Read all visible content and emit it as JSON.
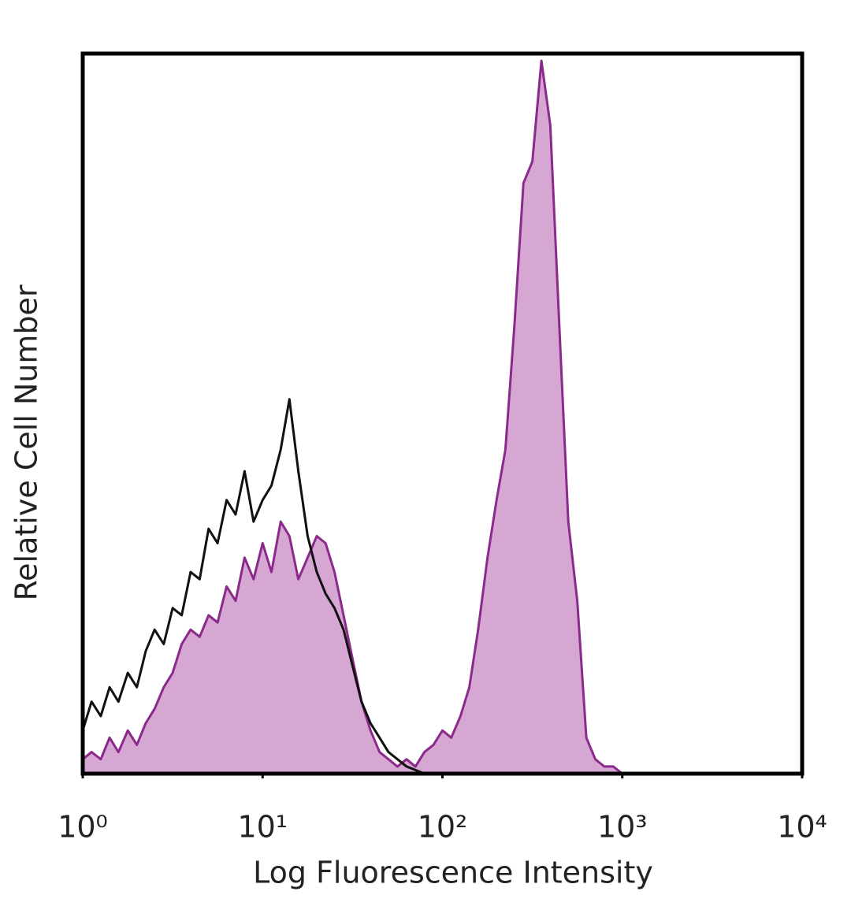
{
  "chart_data": {
    "type": "histogram-overlay",
    "x_label": "Log Fluorescence Intensity",
    "y_label": "Relative Cell Number",
    "xscale": "log",
    "xlim": [
      1,
      10000
    ],
    "ylim": [
      0,
      100
    ],
    "xticks": [
      {
        "value": 1,
        "label": "10⁰"
      },
      {
        "value": 10,
        "label": "10¹"
      },
      {
        "value": 100,
        "label": "10²"
      },
      {
        "value": 1000,
        "label": "10³"
      },
      {
        "value": 10000,
        "label": "10⁴"
      }
    ],
    "x": [
      1,
      1.12,
      1.26,
      1.41,
      1.58,
      1.78,
      2,
      2.24,
      2.51,
      2.82,
      3.16,
      3.55,
      3.98,
      4.47,
      5.01,
      5.62,
      6.31,
      7.08,
      7.94,
      8.91,
      10,
      11.2,
      12.6,
      14.1,
      15.8,
      17.8,
      20,
      22.4,
      25.1,
      28.2,
      31.6,
      35.5,
      39.8,
      44.7,
      50.1,
      56.2,
      63.1,
      70.8,
      79.4,
      89.1,
      100,
      112,
      126,
      141,
      158,
      178,
      200,
      224,
      251,
      282,
      316,
      355,
      398,
      447,
      501,
      562,
      631,
      708,
      794,
      891,
      1000
    ],
    "series": [
      {
        "color": "#8b2a8b",
        "fill": "#d6a7d3",
        "filled": true,
        "values": [
          2,
          3,
          2,
          5,
          3,
          6,
          4,
          7,
          9,
          12,
          14,
          18,
          20,
          19,
          22,
          21,
          26,
          24,
          30,
          27,
          32,
          28,
          35,
          33,
          27,
          30,
          33,
          32,
          28,
          22,
          16,
          10,
          6,
          3,
          2,
          1,
          2,
          1,
          3,
          4,
          6,
          5,
          8,
          12,
          20,
          30,
          38,
          45,
          62,
          82,
          85,
          99,
          90,
          62,
          35,
          24,
          5,
          2,
          1,
          1,
          0
        ]
      },
      {
        "color": "#111111",
        "filled": false,
        "values": [
          6,
          10,
          8,
          12,
          10,
          14,
          12,
          17,
          20,
          18,
          23,
          22,
          28,
          27,
          34,
          32,
          38,
          36,
          42,
          35,
          38,
          40,
          45,
          52,
          42,
          33,
          28,
          25,
          23,
          20,
          15,
          10,
          7,
          5,
          3,
          2,
          1,
          0.5,
          0,
          0,
          0,
          0,
          0,
          0,
          0,
          0,
          0,
          0,
          0,
          0,
          0,
          0,
          0,
          0,
          0,
          0,
          0,
          0,
          0,
          0,
          0
        ]
      }
    ]
  }
}
